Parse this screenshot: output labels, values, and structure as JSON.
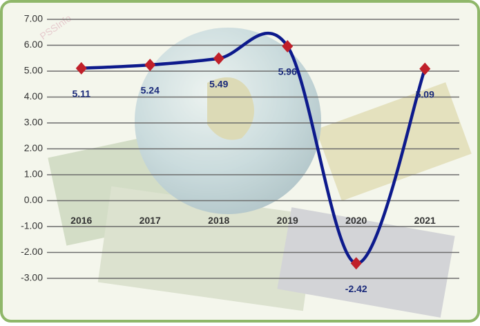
{
  "chart_data": {
    "type": "line",
    "categories": [
      "2016",
      "2017",
      "2018",
      "2019",
      "2020",
      "2021"
    ],
    "values": [
      5.11,
      5.24,
      5.49,
      5.96,
      -2.42,
      5.09
    ],
    "color": "#0d1a8c",
    "marker_color": "#c0202a",
    "ylim": [
      -3,
      7
    ],
    "yticks": [
      {
        "value": -3,
        "label": "-3.00"
      },
      {
        "value": -2,
        "label": "-2.00"
      },
      {
        "value": -1,
        "label": "-1.00"
      },
      {
        "value": 0,
        "label": "0.00"
      },
      {
        "value": 1,
        "label": "1.00"
      },
      {
        "value": 2,
        "label": "2.00"
      },
      {
        "value": 3,
        "label": "3.00"
      },
      {
        "value": 4,
        "label": "4.00"
      },
      {
        "value": 5,
        "label": "5.00"
      },
      {
        "value": 6,
        "label": "6.00"
      },
      {
        "value": 7,
        "label": "7.00"
      }
    ],
    "grid": true
  }
}
